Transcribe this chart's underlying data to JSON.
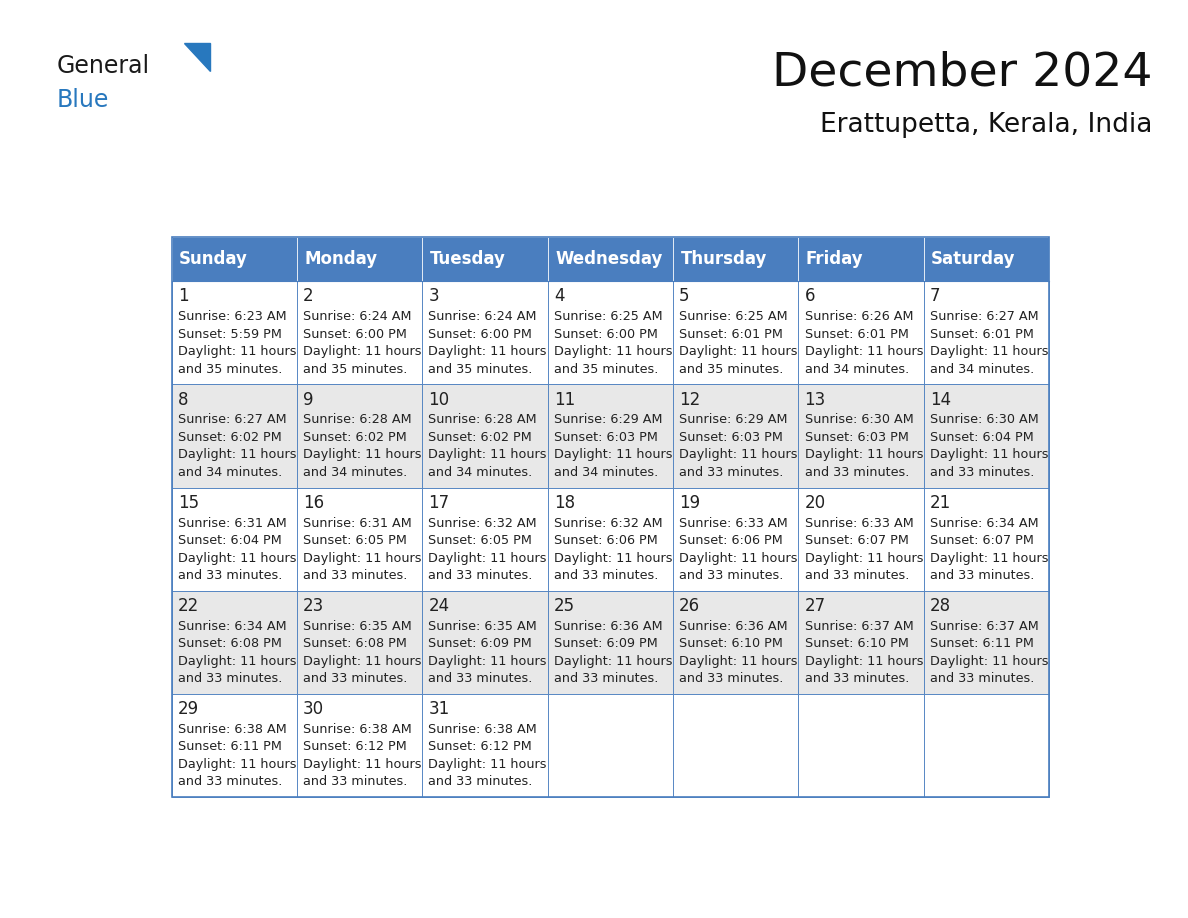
{
  "title": "December 2024",
  "subtitle": "Erattupetta, Kerala, India",
  "header_color": "#4a7ebf",
  "header_text_color": "#FFFFFF",
  "cell_bg_white": "#FFFFFF",
  "cell_bg_gray": "#E8E8E8",
  "border_color": "#4a7ebf",
  "day_text_color": "#222222",
  "info_text_color": "#222222",
  "weekdays": [
    "Sunday",
    "Monday",
    "Tuesday",
    "Wednesday",
    "Thursday",
    "Friday",
    "Saturday"
  ],
  "calendar_data": [
    [
      {
        "day": "1",
        "sunrise": "6:23 AM",
        "sunset": "5:59 PM",
        "daylight_line1": "Daylight: 11 hours",
        "daylight_line2": "and 35 minutes."
      },
      {
        "day": "2",
        "sunrise": "6:24 AM",
        "sunset": "6:00 PM",
        "daylight_line1": "Daylight: 11 hours",
        "daylight_line2": "and 35 minutes."
      },
      {
        "day": "3",
        "sunrise": "6:24 AM",
        "sunset": "6:00 PM",
        "daylight_line1": "Daylight: 11 hours",
        "daylight_line2": "and 35 minutes."
      },
      {
        "day": "4",
        "sunrise": "6:25 AM",
        "sunset": "6:00 PM",
        "daylight_line1": "Daylight: 11 hours",
        "daylight_line2": "and 35 minutes."
      },
      {
        "day": "5",
        "sunrise": "6:25 AM",
        "sunset": "6:01 PM",
        "daylight_line1": "Daylight: 11 hours",
        "daylight_line2": "and 35 minutes."
      },
      {
        "day": "6",
        "sunrise": "6:26 AM",
        "sunset": "6:01 PM",
        "daylight_line1": "Daylight: 11 hours",
        "daylight_line2": "and 34 minutes."
      },
      {
        "day": "7",
        "sunrise": "6:27 AM",
        "sunset": "6:01 PM",
        "daylight_line1": "Daylight: 11 hours",
        "daylight_line2": "and 34 minutes."
      }
    ],
    [
      {
        "day": "8",
        "sunrise": "6:27 AM",
        "sunset": "6:02 PM",
        "daylight_line1": "Daylight: 11 hours",
        "daylight_line2": "and 34 minutes."
      },
      {
        "day": "9",
        "sunrise": "6:28 AM",
        "sunset": "6:02 PM",
        "daylight_line1": "Daylight: 11 hours",
        "daylight_line2": "and 34 minutes."
      },
      {
        "day": "10",
        "sunrise": "6:28 AM",
        "sunset": "6:02 PM",
        "daylight_line1": "Daylight: 11 hours",
        "daylight_line2": "and 34 minutes."
      },
      {
        "day": "11",
        "sunrise": "6:29 AM",
        "sunset": "6:03 PM",
        "daylight_line1": "Daylight: 11 hours",
        "daylight_line2": "and 34 minutes."
      },
      {
        "day": "12",
        "sunrise": "6:29 AM",
        "sunset": "6:03 PM",
        "daylight_line1": "Daylight: 11 hours",
        "daylight_line2": "and 33 minutes."
      },
      {
        "day": "13",
        "sunrise": "6:30 AM",
        "sunset": "6:03 PM",
        "daylight_line1": "Daylight: 11 hours",
        "daylight_line2": "and 33 minutes."
      },
      {
        "day": "14",
        "sunrise": "6:30 AM",
        "sunset": "6:04 PM",
        "daylight_line1": "Daylight: 11 hours",
        "daylight_line2": "and 33 minutes."
      }
    ],
    [
      {
        "day": "15",
        "sunrise": "6:31 AM",
        "sunset": "6:04 PM",
        "daylight_line1": "Daylight: 11 hours",
        "daylight_line2": "and 33 minutes."
      },
      {
        "day": "16",
        "sunrise": "6:31 AM",
        "sunset": "6:05 PM",
        "daylight_line1": "Daylight: 11 hours",
        "daylight_line2": "and 33 minutes."
      },
      {
        "day": "17",
        "sunrise": "6:32 AM",
        "sunset": "6:05 PM",
        "daylight_line1": "Daylight: 11 hours",
        "daylight_line2": "and 33 minutes."
      },
      {
        "day": "18",
        "sunrise": "6:32 AM",
        "sunset": "6:06 PM",
        "daylight_line1": "Daylight: 11 hours",
        "daylight_line2": "and 33 minutes."
      },
      {
        "day": "19",
        "sunrise": "6:33 AM",
        "sunset": "6:06 PM",
        "daylight_line1": "Daylight: 11 hours",
        "daylight_line2": "and 33 minutes."
      },
      {
        "day": "20",
        "sunrise": "6:33 AM",
        "sunset": "6:07 PM",
        "daylight_line1": "Daylight: 11 hours",
        "daylight_line2": "and 33 minutes."
      },
      {
        "day": "21",
        "sunrise": "6:34 AM",
        "sunset": "6:07 PM",
        "daylight_line1": "Daylight: 11 hours",
        "daylight_line2": "and 33 minutes."
      }
    ],
    [
      {
        "day": "22",
        "sunrise": "6:34 AM",
        "sunset": "6:08 PM",
        "daylight_line1": "Daylight: 11 hours",
        "daylight_line2": "and 33 minutes."
      },
      {
        "day": "23",
        "sunrise": "6:35 AM",
        "sunset": "6:08 PM",
        "daylight_line1": "Daylight: 11 hours",
        "daylight_line2": "and 33 minutes."
      },
      {
        "day": "24",
        "sunrise": "6:35 AM",
        "sunset": "6:09 PM",
        "daylight_line1": "Daylight: 11 hours",
        "daylight_line2": "and 33 minutes."
      },
      {
        "day": "25",
        "sunrise": "6:36 AM",
        "sunset": "6:09 PM",
        "daylight_line1": "Daylight: 11 hours",
        "daylight_line2": "and 33 minutes."
      },
      {
        "day": "26",
        "sunrise": "6:36 AM",
        "sunset": "6:10 PM",
        "daylight_line1": "Daylight: 11 hours",
        "daylight_line2": "and 33 minutes."
      },
      {
        "day": "27",
        "sunrise": "6:37 AM",
        "sunset": "6:10 PM",
        "daylight_line1": "Daylight: 11 hours",
        "daylight_line2": "and 33 minutes."
      },
      {
        "day": "28",
        "sunrise": "6:37 AM",
        "sunset": "6:11 PM",
        "daylight_line1": "Daylight: 11 hours",
        "daylight_line2": "and 33 minutes."
      }
    ],
    [
      {
        "day": "29",
        "sunrise": "6:38 AM",
        "sunset": "6:11 PM",
        "daylight_line1": "Daylight: 11 hours",
        "daylight_line2": "and 33 minutes."
      },
      {
        "day": "30",
        "sunrise": "6:38 AM",
        "sunset": "6:12 PM",
        "daylight_line1": "Daylight: 11 hours",
        "daylight_line2": "and 33 minutes."
      },
      {
        "day": "31",
        "sunrise": "6:38 AM",
        "sunset": "6:12 PM",
        "daylight_line1": "Daylight: 11 hours",
        "daylight_line2": "and 33 minutes."
      },
      null,
      null,
      null,
      null
    ]
  ],
  "logo_general_color": "#1a1a1a",
  "logo_blue_color": "#2878be",
  "title_fontsize": 34,
  "subtitle_fontsize": 19,
  "header_fontsize": 12,
  "day_num_fontsize": 12,
  "info_fontsize": 9.2
}
